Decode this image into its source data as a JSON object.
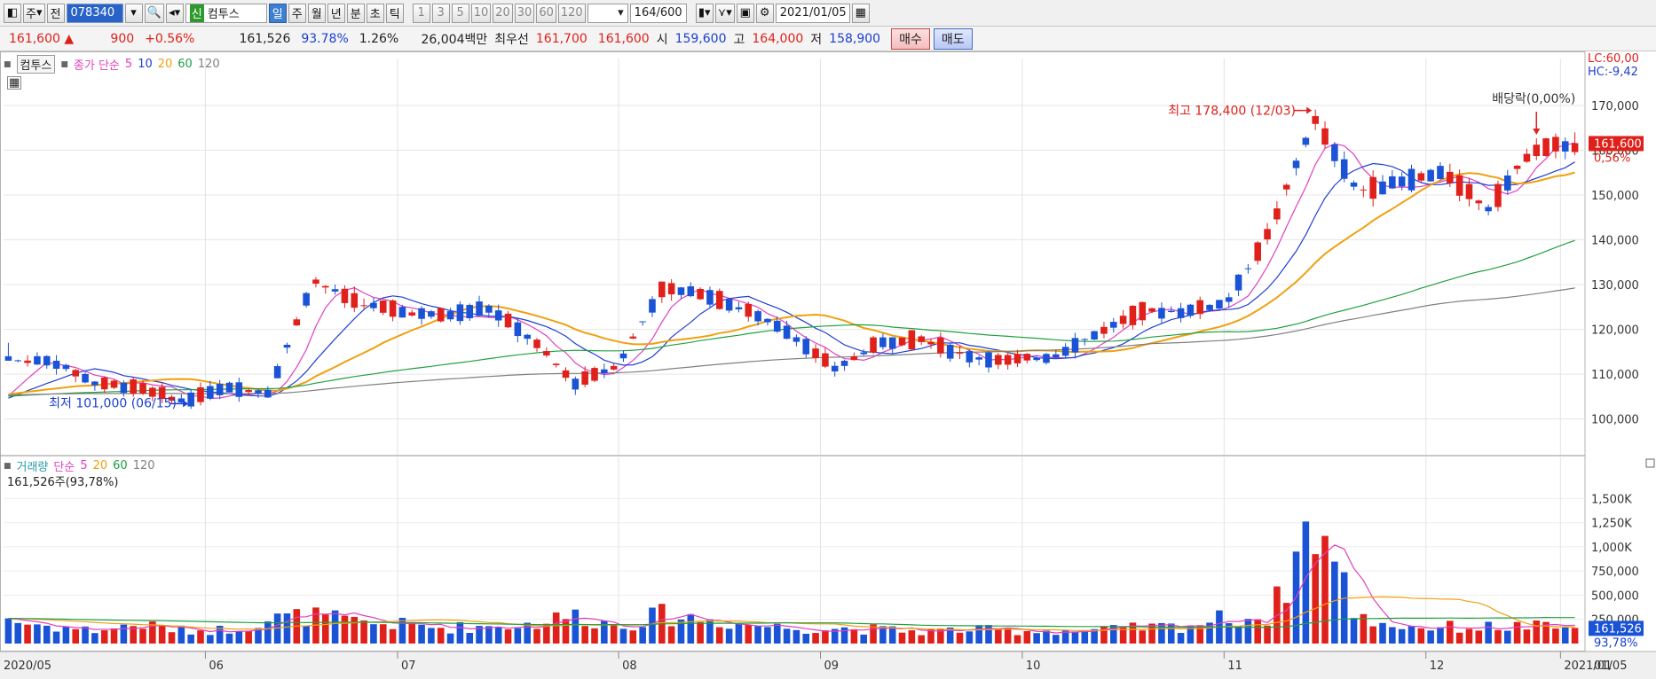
{
  "toolbar": {
    "market_1": "주",
    "market_2": "전",
    "code": "078340",
    "badge": "신",
    "name": "컴투스",
    "periods": [
      "일",
      "주",
      "월",
      "년",
      "분",
      "초",
      "틱"
    ],
    "intervals": [
      "1",
      "3",
      "5",
      "10",
      "20",
      "30",
      "60",
      "120"
    ],
    "count": "164",
    "count_max": "/600",
    "date": "2021/01/05"
  },
  "quote": {
    "price": "161,600",
    "arrow": "▲",
    "change": "900",
    "change_pct": "+0.56%",
    "volume": "161,526",
    "vol_ratio": "93.78%",
    "turnover": "1.26%",
    "amount": "26,004백만",
    "best_label": "최우선",
    "best_ask": "161,700",
    "best_bid": "161,600",
    "open_label": "시",
    "open": "159,600",
    "high_label": "고",
    "high": "164,000",
    "low_label": "저",
    "low": "158,900",
    "buy_label": "매수",
    "sell_label": "매도"
  },
  "price_legend": {
    "title": "컴투스",
    "series": "종가 단순",
    "periods": [
      "5",
      "10",
      "20",
      "60",
      "120"
    ]
  },
  "volume_legend": {
    "title": "거래량",
    "series": "단순",
    "periods": [
      "5",
      "20",
      "60",
      "120"
    ],
    "current": "161,526주(93,78%)"
  },
  "chart_data": {
    "type": "candlestick",
    "price_axis": {
      "ticks": [
        "170,000",
        "160,000",
        "150,000",
        "140,000",
        "130,000",
        "120,000",
        "110,000",
        "100,000"
      ],
      "ylim": [
        92000,
        180500
      ],
      "top_labels": [
        "LC:60,00",
        "HC:-9,42"
      ],
      "current": "161,600",
      "current_pct": "0,56%"
    },
    "volume_axis": {
      "ticks": [
        "1,500K",
        "1,250K",
        "1,000K",
        "750,000",
        "500,000",
        "250,000"
      ],
      "ylim": [
        0,
        1650000
      ],
      "current": "161,526",
      "current_pct": "93,78%"
    },
    "annotations": {
      "high": "최고 178,400 (12/03)",
      "low": "최저 101,000 (06/15)",
      "dividend": "배당락(0,00%)"
    },
    "x_labels": [
      "2020/05",
      "06",
      "07",
      "08",
      "09",
      "10",
      "11",
      "12",
      "2021/01",
      "01/05"
    ],
    "anchors": [
      [
        114000,
        117000,
        113000,
        113000,
        260000
      ],
      [
        108000,
        115000,
        107000,
        113000,
        200000
      ],
      [
        109000,
        112000,
        106000,
        108000,
        150000
      ],
      [
        103000,
        109000,
        101000,
        107000,
        220000
      ],
      [
        103000,
        106000,
        101000,
        104000,
        150000
      ],
      [
        104000,
        108000,
        103000,
        107000,
        160000
      ],
      [
        113000,
        117000,
        105000,
        106000,
        280000
      ],
      [
        134000,
        136000,
        127000,
        131000,
        320000
      ],
      [
        127000,
        131000,
        125000,
        126000,
        240000
      ],
      [
        126000,
        129000,
        123000,
        124000,
        220000
      ],
      [
        124000,
        127000,
        121000,
        123000,
        180000
      ],
      [
        126000,
        128000,
        124000,
        125000,
        200000
      ],
      [
        118000,
        120000,
        116000,
        118000,
        220000
      ],
      [
        107000,
        111000,
        104000,
        108000,
        330000
      ],
      [
        110000,
        114000,
        108000,
        112000,
        200000
      ],
      [
        127000,
        134000,
        120000,
        129000,
        330000
      ],
      [
        132000,
        135000,
        126000,
        128000,
        280000
      ],
      [
        125000,
        127000,
        120000,
        124000,
        220000
      ],
      [
        118000,
        123000,
        115000,
        119000,
        180000
      ],
      [
        112000,
        117000,
        108000,
        111000,
        180000
      ],
      [
        118000,
        121000,
        115000,
        117000,
        160000
      ],
      [
        117000,
        123000,
        114000,
        118000,
        140000
      ],
      [
        113000,
        118000,
        111000,
        114000,
        160000
      ],
      [
        112000,
        116000,
        110000,
        113000,
        150000
      ],
      [
        113000,
        117000,
        111000,
        114000,
        150000
      ],
      [
        118000,
        121000,
        115000,
        119000,
        150000
      ],
      [
        123000,
        126000,
        119000,
        124000,
        180000
      ],
      [
        117000,
        126000,
        116000,
        124000,
        200000
      ],
      [
        128000,
        131000,
        123000,
        126000,
        300000
      ],
      [
        140000,
        145000,
        134000,
        142000,
        300000
      ],
      [
        152000,
        178400,
        150000,
        167000,
        1480000
      ],
      [
        153000,
        158000,
        147000,
        151000,
        300000
      ],
      [
        155000,
        157000,
        150000,
        153000,
        200000
      ],
      [
        154000,
        158000,
        151000,
        155000,
        190000
      ],
      [
        147000,
        153000,
        145000,
        147000,
        190000
      ],
      [
        152000,
        160000,
        145000,
        160000,
        200000
      ],
      [
        159600,
        164000,
        158900,
        161600,
        161526
      ]
    ],
    "candles_total": 164
  },
  "colors": {
    "up": "#e0201a",
    "down": "#1a53d6",
    "ma5": "#e040c0",
    "ma10": "#2040d0",
    "ma20": "#f0a010",
    "ma60": "#20a040",
    "ma120": "#808080"
  }
}
